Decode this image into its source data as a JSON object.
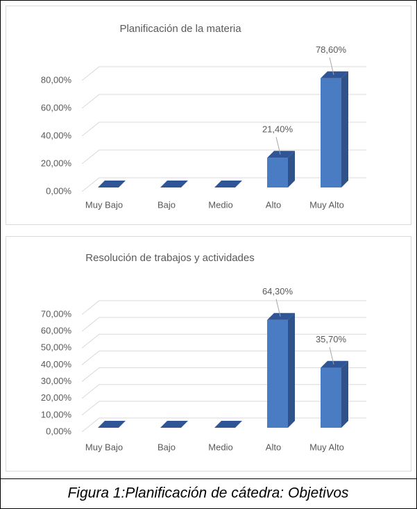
{
  "chart_data": [
    {
      "type": "bar",
      "title": "Planificación de la materia",
      "categories": [
        "Muy Bajo",
        "Bajo",
        "Medio",
        "Alto",
        "Muy Alto"
      ],
      "values": [
        0,
        0,
        0,
        21.4,
        78.6
      ],
      "value_labels": [
        null,
        null,
        null,
        "21,40%",
        "78,60%"
      ],
      "color": "#4a7cc4",
      "ylim": [
        0,
        80
      ],
      "yticks": [
        {
          "value": 0,
          "label": "0,00%"
        },
        {
          "value": 20,
          "label": "20,00%"
        },
        {
          "value": 40,
          "label": "40,00%"
        },
        {
          "value": 60,
          "label": "60,00%"
        },
        {
          "value": 80,
          "label": "80,00%"
        }
      ],
      "grid": true
    },
    {
      "type": "bar",
      "title": "Resolución de trabajos y actividades",
      "categories": [
        "Muy Bajo",
        "Bajo",
        "Medio",
        "Alto",
        "Muy Alto"
      ],
      "values": [
        0,
        0,
        0,
        64.3,
        35.7
      ],
      "value_labels": [
        null,
        null,
        null,
        "64,30%",
        "35,70%"
      ],
      "color": "#4a7cc4",
      "ylim": [
        0,
        70
      ],
      "yticks": [
        {
          "value": 0,
          "label": "0,00%"
        },
        {
          "value": 10,
          "label": "10,00%"
        },
        {
          "value": 20,
          "label": "20,00%"
        },
        {
          "value": 30,
          "label": "30,00%"
        },
        {
          "value": 40,
          "label": "40,00%"
        },
        {
          "value": 50,
          "label": "50,00%"
        },
        {
          "value": 60,
          "label": "60,00%"
        },
        {
          "value": 70,
          "label": "70,00%"
        }
      ],
      "grid": true
    }
  ],
  "caption": "Figura 1:Planificación de cátedra: Objetivos"
}
